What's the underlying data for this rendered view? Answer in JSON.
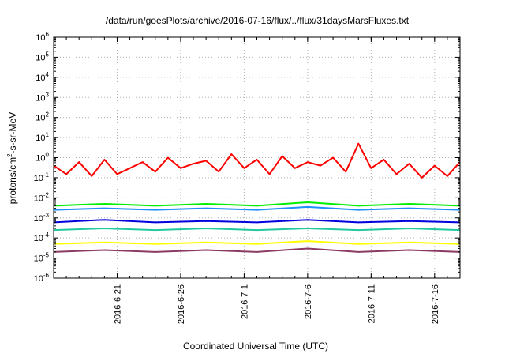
{
  "chart_data": {
    "type": "line",
    "title": "/data/run/goesPlots/archive/2016-07-16/flux/../flux/31daysMarsFluxes.txt",
    "xlabel": "Coordinated Universal Time (UTC)",
    "ylabel": {
      "base": "protons/cm",
      "sup": "2",
      "rest": "-s-sr-MeV"
    },
    "yscale": "log",
    "ylim": [
      1e-06,
      1000000.0
    ],
    "y_ticks": [
      {
        "m": "10",
        "e": "-6"
      },
      {
        "m": "10",
        "e": "-5"
      },
      {
        "m": "10",
        "e": "-4"
      },
      {
        "m": "10",
        "e": "-3"
      },
      {
        "m": "10",
        "e": "-2"
      },
      {
        "m": "10",
        "e": "-1"
      },
      {
        "m": "10",
        "e": "0"
      },
      {
        "m": "10",
        "e": "1"
      },
      {
        "m": "10",
        "e": "2"
      },
      {
        "m": "10",
        "e": "3"
      },
      {
        "m": "10",
        "e": "4"
      },
      {
        "m": "10",
        "e": "5"
      },
      {
        "m": "10",
        "e": "6"
      }
    ],
    "xlim": [
      "2016-06-16",
      "2016-07-18"
    ],
    "x_ticks": [
      "2016-6-21",
      "2016-6-26",
      "2016-7-1",
      "2016-7-6",
      "2016-7-11",
      "2016-7-16"
    ],
    "grid": true,
    "series": [
      {
        "color": "#ff0000",
        "x": [
          "2016-06-16",
          "2016-06-17",
          "2016-06-18",
          "2016-06-19",
          "2016-06-20",
          "2016-06-21",
          "2016-06-22",
          "2016-06-23",
          "2016-06-24",
          "2016-06-25",
          "2016-06-26",
          "2016-06-27",
          "2016-06-28",
          "2016-06-29",
          "2016-06-30",
          "2016-07-01",
          "2016-07-02",
          "2016-07-03",
          "2016-07-04",
          "2016-07-05",
          "2016-07-06",
          "2016-07-07",
          "2016-07-08",
          "2016-07-09",
          "2016-07-10",
          "2016-07-11",
          "2016-07-12",
          "2016-07-13",
          "2016-07-14",
          "2016-07-15",
          "2016-07-16",
          "2016-07-17",
          "2016-07-18"
        ],
        "y": [
          0.4,
          0.15,
          0.6,
          0.12,
          0.8,
          0.15,
          0.3,
          0.6,
          0.2,
          1.0,
          0.3,
          0.5,
          0.7,
          0.2,
          1.5,
          0.3,
          0.8,
          0.15,
          1.2,
          0.3,
          0.6,
          0.4,
          1.0,
          0.2,
          5.0,
          0.3,
          0.8,
          0.15,
          0.5,
          0.1,
          0.4,
          0.12,
          0.6
        ]
      },
      {
        "color": "#00ee00",
        "x": [
          "2016-06-16",
          "2016-06-20",
          "2016-06-24",
          "2016-06-28",
          "2016-07-02",
          "2016-07-06",
          "2016-07-10",
          "2016-07-14",
          "2016-07-18"
        ],
        "y": [
          0.004,
          0.005,
          0.004,
          0.005,
          0.004,
          0.006,
          0.004,
          0.005,
          0.004
        ]
      },
      {
        "color": "#1e90ff",
        "x": [
          "2016-06-16",
          "2016-06-20",
          "2016-06-24",
          "2016-06-28",
          "2016-07-02",
          "2016-07-06",
          "2016-07-10",
          "2016-07-14",
          "2016-07-18"
        ],
        "y": [
          0.0025,
          0.003,
          0.0025,
          0.003,
          0.0025,
          0.0035,
          0.0025,
          0.003,
          0.0025
        ]
      },
      {
        "color": "#0000dd",
        "x": [
          "2016-06-16",
          "2016-06-20",
          "2016-06-24",
          "2016-06-28",
          "2016-07-02",
          "2016-07-06",
          "2016-07-10",
          "2016-07-14",
          "2016-07-18"
        ],
        "y": [
          0.0006,
          0.0008,
          0.0006,
          0.0007,
          0.0006,
          0.0008,
          0.0006,
          0.0007,
          0.0006
        ]
      },
      {
        "color": "#20c8a0",
        "x": [
          "2016-06-16",
          "2016-06-20",
          "2016-06-24",
          "2016-06-28",
          "2016-07-02",
          "2016-07-06",
          "2016-07-10",
          "2016-07-14",
          "2016-07-18"
        ],
        "y": [
          0.00025,
          0.0003,
          0.00025,
          0.0003,
          0.00025,
          0.0003,
          0.00025,
          0.0003,
          0.00025
        ]
      },
      {
        "color": "#ffff00",
        "x": [
          "2016-06-16",
          "2016-06-20",
          "2016-06-24",
          "2016-06-28",
          "2016-07-02",
          "2016-07-06",
          "2016-07-10",
          "2016-07-14",
          "2016-07-18"
        ],
        "y": [
          5e-05,
          6e-05,
          5e-05,
          6e-05,
          5e-05,
          7e-05,
          5e-05,
          6e-05,
          5e-05
        ]
      },
      {
        "color": "#8b3a62",
        "x": [
          "2016-06-16",
          "2016-06-20",
          "2016-06-24",
          "2016-06-28",
          "2016-07-02",
          "2016-07-06",
          "2016-07-10",
          "2016-07-14",
          "2016-07-18"
        ],
        "y": [
          2e-05,
          2.5e-05,
          2e-05,
          2.5e-05,
          2e-05,
          3e-05,
          2e-05,
          2.5e-05,
          2e-05
        ]
      }
    ]
  }
}
